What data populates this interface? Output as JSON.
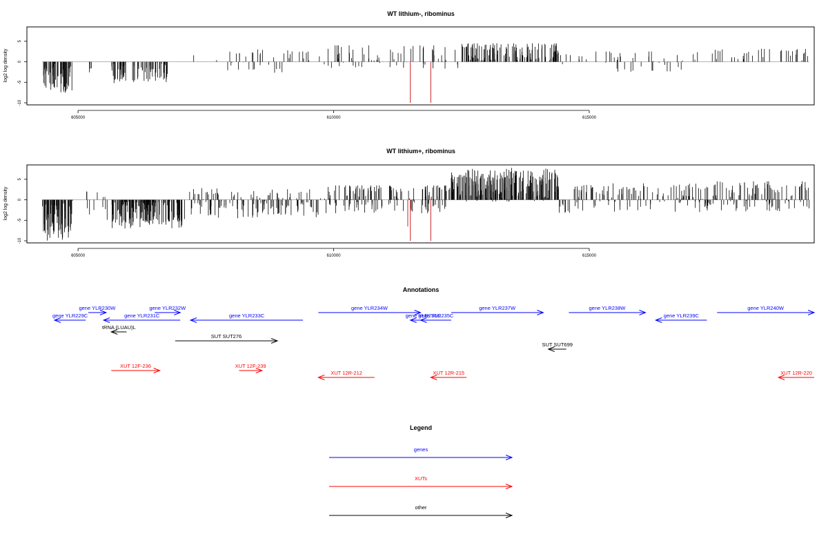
{
  "colors": {
    "gene": "#0000ff",
    "xut": "#ff0000",
    "other": "#000000",
    "axis": "#000000",
    "highlight": "#d02020"
  },
  "chart_data": [
    {
      "type": "bar",
      "title": "WT lithium-, ribominus",
      "ylabel": "log2 log density",
      "xlim": [
        604000,
        619400
      ],
      "ylim": [
        -10.5,
        8.5
      ],
      "x_ticks": [
        605000,
        610000,
        615000
      ],
      "y_ticks": [
        5,
        0,
        -5,
        -10
      ],
      "profile": [
        {
          "from": 604300,
          "to": 604900,
          "min": -8.5,
          "max": 0,
          "bias": -3.5,
          "density": 55,
          "seed": 11
        },
        {
          "from": 605200,
          "to": 605300,
          "min": -4,
          "max": 0,
          "bias": -2,
          "density": 4,
          "seed": 12
        },
        {
          "from": 605650,
          "to": 606750,
          "min": -5.5,
          "max": 0,
          "bias": -2.5,
          "density": 75,
          "seed": 13
        },
        {
          "from": 607250,
          "to": 607300,
          "min": 0,
          "max": 2,
          "bias": 1.5,
          "density": 1,
          "seed": 14
        },
        {
          "from": 607700,
          "to": 609600,
          "min": -3.5,
          "max": 3,
          "bias": 0.2,
          "density": 40,
          "seed": 15
        },
        {
          "from": 609700,
          "to": 612500,
          "min": -3,
          "max": 4,
          "bias": 1.5,
          "density": 70,
          "seed": 16
        },
        {
          "from": 612500,
          "to": 614400,
          "min": -1,
          "max": 4.5,
          "bias": 2.5,
          "density": 130,
          "seed": 17
        },
        {
          "from": 614400,
          "to": 615000,
          "min": -3,
          "max": 2.5,
          "bias": 0.8,
          "density": 8,
          "seed": 18
        },
        {
          "from": 615000,
          "to": 617300,
          "min": -3.5,
          "max": 2.5,
          "bias": 0.3,
          "density": 40,
          "seed": 19
        },
        {
          "from": 617300,
          "to": 619300,
          "min": 0,
          "max": 3.2,
          "bias": 1.8,
          "density": 35,
          "seed": 20
        }
      ],
      "highlights": [
        {
          "x": 611500,
          "value": -10
        },
        {
          "x": 611900,
          "value": -10
        }
      ]
    },
    {
      "type": "bar",
      "title": "WT lithium+, ribominus",
      "ylabel": "log2 log density",
      "xlim": [
        604000,
        619400
      ],
      "ylim": [
        -10.5,
        8.5
      ],
      "x_ticks": [
        605000,
        610000,
        615000
      ],
      "y_ticks": [
        5,
        0,
        -5,
        -10
      ],
      "profile": [
        {
          "from": 604300,
          "to": 604900,
          "min": -10,
          "max": 0,
          "bias": -4,
          "density": 80,
          "seed": 31
        },
        {
          "from": 605100,
          "to": 605600,
          "min": -7,
          "max": 2,
          "bias": -1,
          "density": 12,
          "seed": 32
        },
        {
          "from": 605650,
          "to": 607100,
          "min": -7,
          "max": 0,
          "bias": -3,
          "density": 160,
          "seed": 33
        },
        {
          "from": 607100,
          "to": 609700,
          "min": -4.5,
          "max": 3,
          "bias": -0.5,
          "density": 140,
          "seed": 34
        },
        {
          "from": 609700,
          "to": 612300,
          "min": -5,
          "max": 3.5,
          "bias": 0.5,
          "density": 150,
          "seed": 35
        },
        {
          "from": 612300,
          "to": 614400,
          "min": -1,
          "max": 8,
          "bias": 3.5,
          "density": 220,
          "seed": 36
        },
        {
          "from": 614400,
          "to": 614700,
          "min": -3.5,
          "max": 0.5,
          "bias": -1.5,
          "density": 10,
          "seed": 37
        },
        {
          "from": 614700,
          "to": 617300,
          "min": -4,
          "max": 4,
          "bias": 0.5,
          "density": 120,
          "seed": 38
        },
        {
          "from": 617300,
          "to": 619300,
          "min": -4,
          "max": 4.5,
          "bias": 1,
          "density": 110,
          "seed": 39
        }
      ],
      "highlights": [
        {
          "x": 611450,
          "value": -6.5
        },
        {
          "x": 611500,
          "value": -10
        },
        {
          "x": 611900,
          "value": -10
        }
      ]
    }
  ],
  "annotations": {
    "title": "Annotations",
    "features": [
      {
        "label": "gene YLR229C",
        "category": "gene",
        "start": 604000,
        "end": 605150,
        "strand": "-",
        "row": 1
      },
      {
        "label": "gene YLR230W",
        "category": "gene",
        "start": 605200,
        "end": 605550,
        "strand": "+",
        "row": 0
      },
      {
        "label": "tRNA (LUAU)L",
        "category": "other",
        "start": 605650,
        "end": 605950,
        "strand": "-",
        "row": 2
      },
      {
        "label": "gene YLR231C",
        "category": "gene",
        "start": 605500,
        "end": 607000,
        "strand": "-",
        "row": 1
      },
      {
        "label": "gene YLR232W",
        "category": "gene",
        "start": 606500,
        "end": 607000,
        "strand": "+",
        "row": 0
      },
      {
        "label": "gene YLR233C",
        "category": "gene",
        "start": 607200,
        "end": 609400,
        "strand": "-",
        "row": 1
      },
      {
        "label": "SUT SUT276",
        "category": "other",
        "start": 606900,
        "end": 608900,
        "strand": "+",
        "row": 3
      },
      {
        "label": "gene YLR234W",
        "category": "gene",
        "start": 609700,
        "end": 611700,
        "strand": "+",
        "row": 0
      },
      {
        "label": "gene YLR235C",
        "category": "gene",
        "start": 611700,
        "end": 612300,
        "strand": "-",
        "row": 1
      },
      {
        "label": "gene YLR236C",
        "category": "gene",
        "start": 611500,
        "end": 612000,
        "strand": "-",
        "row": 1
      },
      {
        "label": "gene YLR237W",
        "category": "gene",
        "start": 612300,
        "end": 614100,
        "strand": "+",
        "row": 0
      },
      {
        "label": "gene YLR238W",
        "category": "gene",
        "start": 614600,
        "end": 616100,
        "strand": "+",
        "row": 0
      },
      {
        "label": "gene YLR239C",
        "category": "gene",
        "start": 616300,
        "end": 617300,
        "strand": "-",
        "row": 1
      },
      {
        "label": "gene YLR240W",
        "category": "gene",
        "start": 617500,
        "end": 619400,
        "strand": "+",
        "row": 0
      },
      {
        "label": "SUT SUT699",
        "category": "other",
        "start": 614200,
        "end": 614550,
        "strand": "-",
        "row": 4
      },
      {
        "label": "XUT 12F-236",
        "category": "xut",
        "start": 605650,
        "end": 606600,
        "strand": "+",
        "row": 5
      },
      {
        "label": "XUT 12F-239",
        "category": "xut",
        "start": 608150,
        "end": 608600,
        "strand": "+",
        "row": 5
      },
      {
        "label": "XUT 12R-212",
        "category": "xut",
        "start": 609700,
        "end": 610800,
        "strand": "-",
        "row": 6
      },
      {
        "label": "XUT 12R-215",
        "category": "xut",
        "start": 611900,
        "end": 612600,
        "strand": "-",
        "row": 6
      },
      {
        "label": "XUT 12R-220",
        "category": "xut",
        "start": 618700,
        "end": 619400,
        "strand": "-",
        "row": 6
      }
    ]
  },
  "legend": {
    "title": "Legend",
    "items": [
      {
        "label": "genes",
        "category": "gene"
      },
      {
        "label": "XUTs",
        "category": "xut"
      },
      {
        "label": "other",
        "category": "other"
      }
    ]
  }
}
